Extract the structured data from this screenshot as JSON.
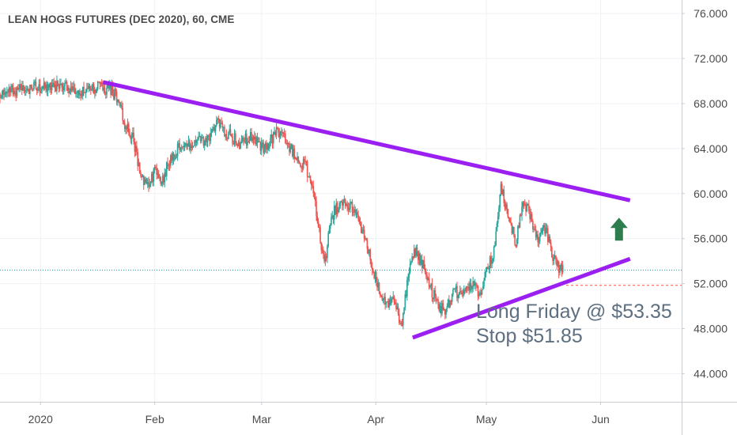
{
  "header": {
    "title": "LEAN HOGS FUTURES (DEC 2020), 60, CME"
  },
  "annotation": {
    "line1": "Long Friday @ $53.35",
    "line2": "Stop $51.85"
  },
  "colors": {
    "up": "#26a69a",
    "down": "#ef5350",
    "trendline": "#9b1ff1",
    "price_line": "#26a69a",
    "stop_line": "#ef5350",
    "arrow": "#2e7d4f",
    "grid": "#eef1f5",
    "axis_text": "#4a4a4a"
  },
  "chart_data": {
    "type": "candlestick",
    "title": "LEAN HOGS FUTURES (DEC 2020), 60, CME",
    "timeframe": "60",
    "exchange": "CME",
    "x_tick_labels": [
      "2020",
      "Feb",
      "Mar",
      "Apr",
      "May",
      "Jun"
    ],
    "y_tick_labels": [
      "76.000",
      "72.000",
      "68.000",
      "64.000",
      "60.000",
      "56.000",
      "52.000",
      "48.000",
      "44.000"
    ],
    "ylim": [
      41.5,
      77.2
    ],
    "xlim": [
      "2019-12-21",
      "2020-06-23"
    ],
    "grid": true,
    "current_price": {
      "value": 53.2,
      "label": "53.200"
    },
    "stop_level": {
      "value": 51.85,
      "label": "51.850"
    },
    "price_path": [
      [
        "2019-12-21",
        68.9
      ],
      [
        "2019-12-25",
        69.2
      ],
      [
        "2019-12-30",
        69.4
      ],
      [
        "2020-01-03",
        69.4
      ],
      [
        "2020-01-07",
        69.5
      ],
      [
        "2020-01-10",
        69.3
      ],
      [
        "2020-01-13",
        69.0
      ],
      [
        "2020-01-16",
        69.5
      ],
      [
        "2020-01-20",
        69.2
      ],
      [
        "2020-01-22",
        68.5
      ],
      [
        "2020-01-24",
        66.0
      ],
      [
        "2020-01-26",
        65.0
      ],
      [
        "2020-01-28",
        62.0
      ],
      [
        "2020-01-30",
        60.5
      ],
      [
        "2020-02-01",
        62.0
      ],
      [
        "2020-02-03",
        61.0
      ],
      [
        "2020-02-05",
        63.0
      ],
      [
        "2020-02-08",
        64.3
      ],
      [
        "2020-02-12",
        64.5
      ],
      [
        "2020-02-16",
        65.0
      ],
      [
        "2020-02-18",
        66.7
      ],
      [
        "2020-02-20",
        65.5
      ],
      [
        "2020-02-24",
        64.5
      ],
      [
        "2020-02-27",
        65.0
      ],
      [
        "2020-03-02",
        64.0
      ],
      [
        "2020-03-05",
        65.5
      ],
      [
        "2020-03-08",
        64.5
      ],
      [
        "2020-03-11",
        63.0
      ],
      [
        "2020-03-13",
        62.5
      ],
      [
        "2020-03-15",
        60.0
      ],
      [
        "2020-03-17",
        56.0
      ],
      [
        "2020-03-18",
        53.5
      ],
      [
        "2020-03-20",
        58.0
      ],
      [
        "2020-03-23",
        59.5
      ],
      [
        "2020-03-26",
        58.5
      ],
      [
        "2020-03-29",
        56.0
      ],
      [
        "2020-03-31",
        53.5
      ],
      [
        "2020-04-02",
        51.5
      ],
      [
        "2020-04-04",
        50.0
      ],
      [
        "2020-04-06",
        50.5
      ],
      [
        "2020-04-08",
        48.0
      ],
      [
        "2020-04-10",
        53.5
      ],
      [
        "2020-04-12",
        55.0
      ],
      [
        "2020-04-14",
        53.5
      ],
      [
        "2020-04-16",
        51.5
      ],
      [
        "2020-04-18",
        50.0
      ],
      [
        "2020-04-20",
        49.5
      ],
      [
        "2020-04-22",
        51.5
      ],
      [
        "2020-04-24",
        51.0
      ],
      [
        "2020-04-27",
        52.0
      ],
      [
        "2020-04-29",
        51.0
      ],
      [
        "2020-05-01",
        53.0
      ],
      [
        "2020-05-03",
        55.0
      ],
      [
        "2020-05-05",
        60.5
      ],
      [
        "2020-05-07",
        58.0
      ],
      [
        "2020-05-09",
        55.5
      ],
      [
        "2020-05-11",
        59.5
      ],
      [
        "2020-05-13",
        58.0
      ],
      [
        "2020-05-15",
        56.0
      ],
      [
        "2020-05-17",
        57.0
      ],
      [
        "2020-05-19",
        54.5
      ],
      [
        "2020-05-21",
        53.3
      ],
      [
        "2020-05-22",
        53.2
      ]
    ],
    "trendlines": [
      {
        "name": "resistance",
        "from": [
          "2020-01-18",
          69.9
        ],
        "to": [
          "2020-06-09",
          59.4
        ]
      },
      {
        "name": "support",
        "from": [
          "2020-04-11",
          47.2
        ],
        "to": [
          "2020-06-09",
          54.2
        ]
      }
    ],
    "signal_arrow": {
      "direction": "up",
      "date": "2020-06-06",
      "price": 56.8
    }
  }
}
